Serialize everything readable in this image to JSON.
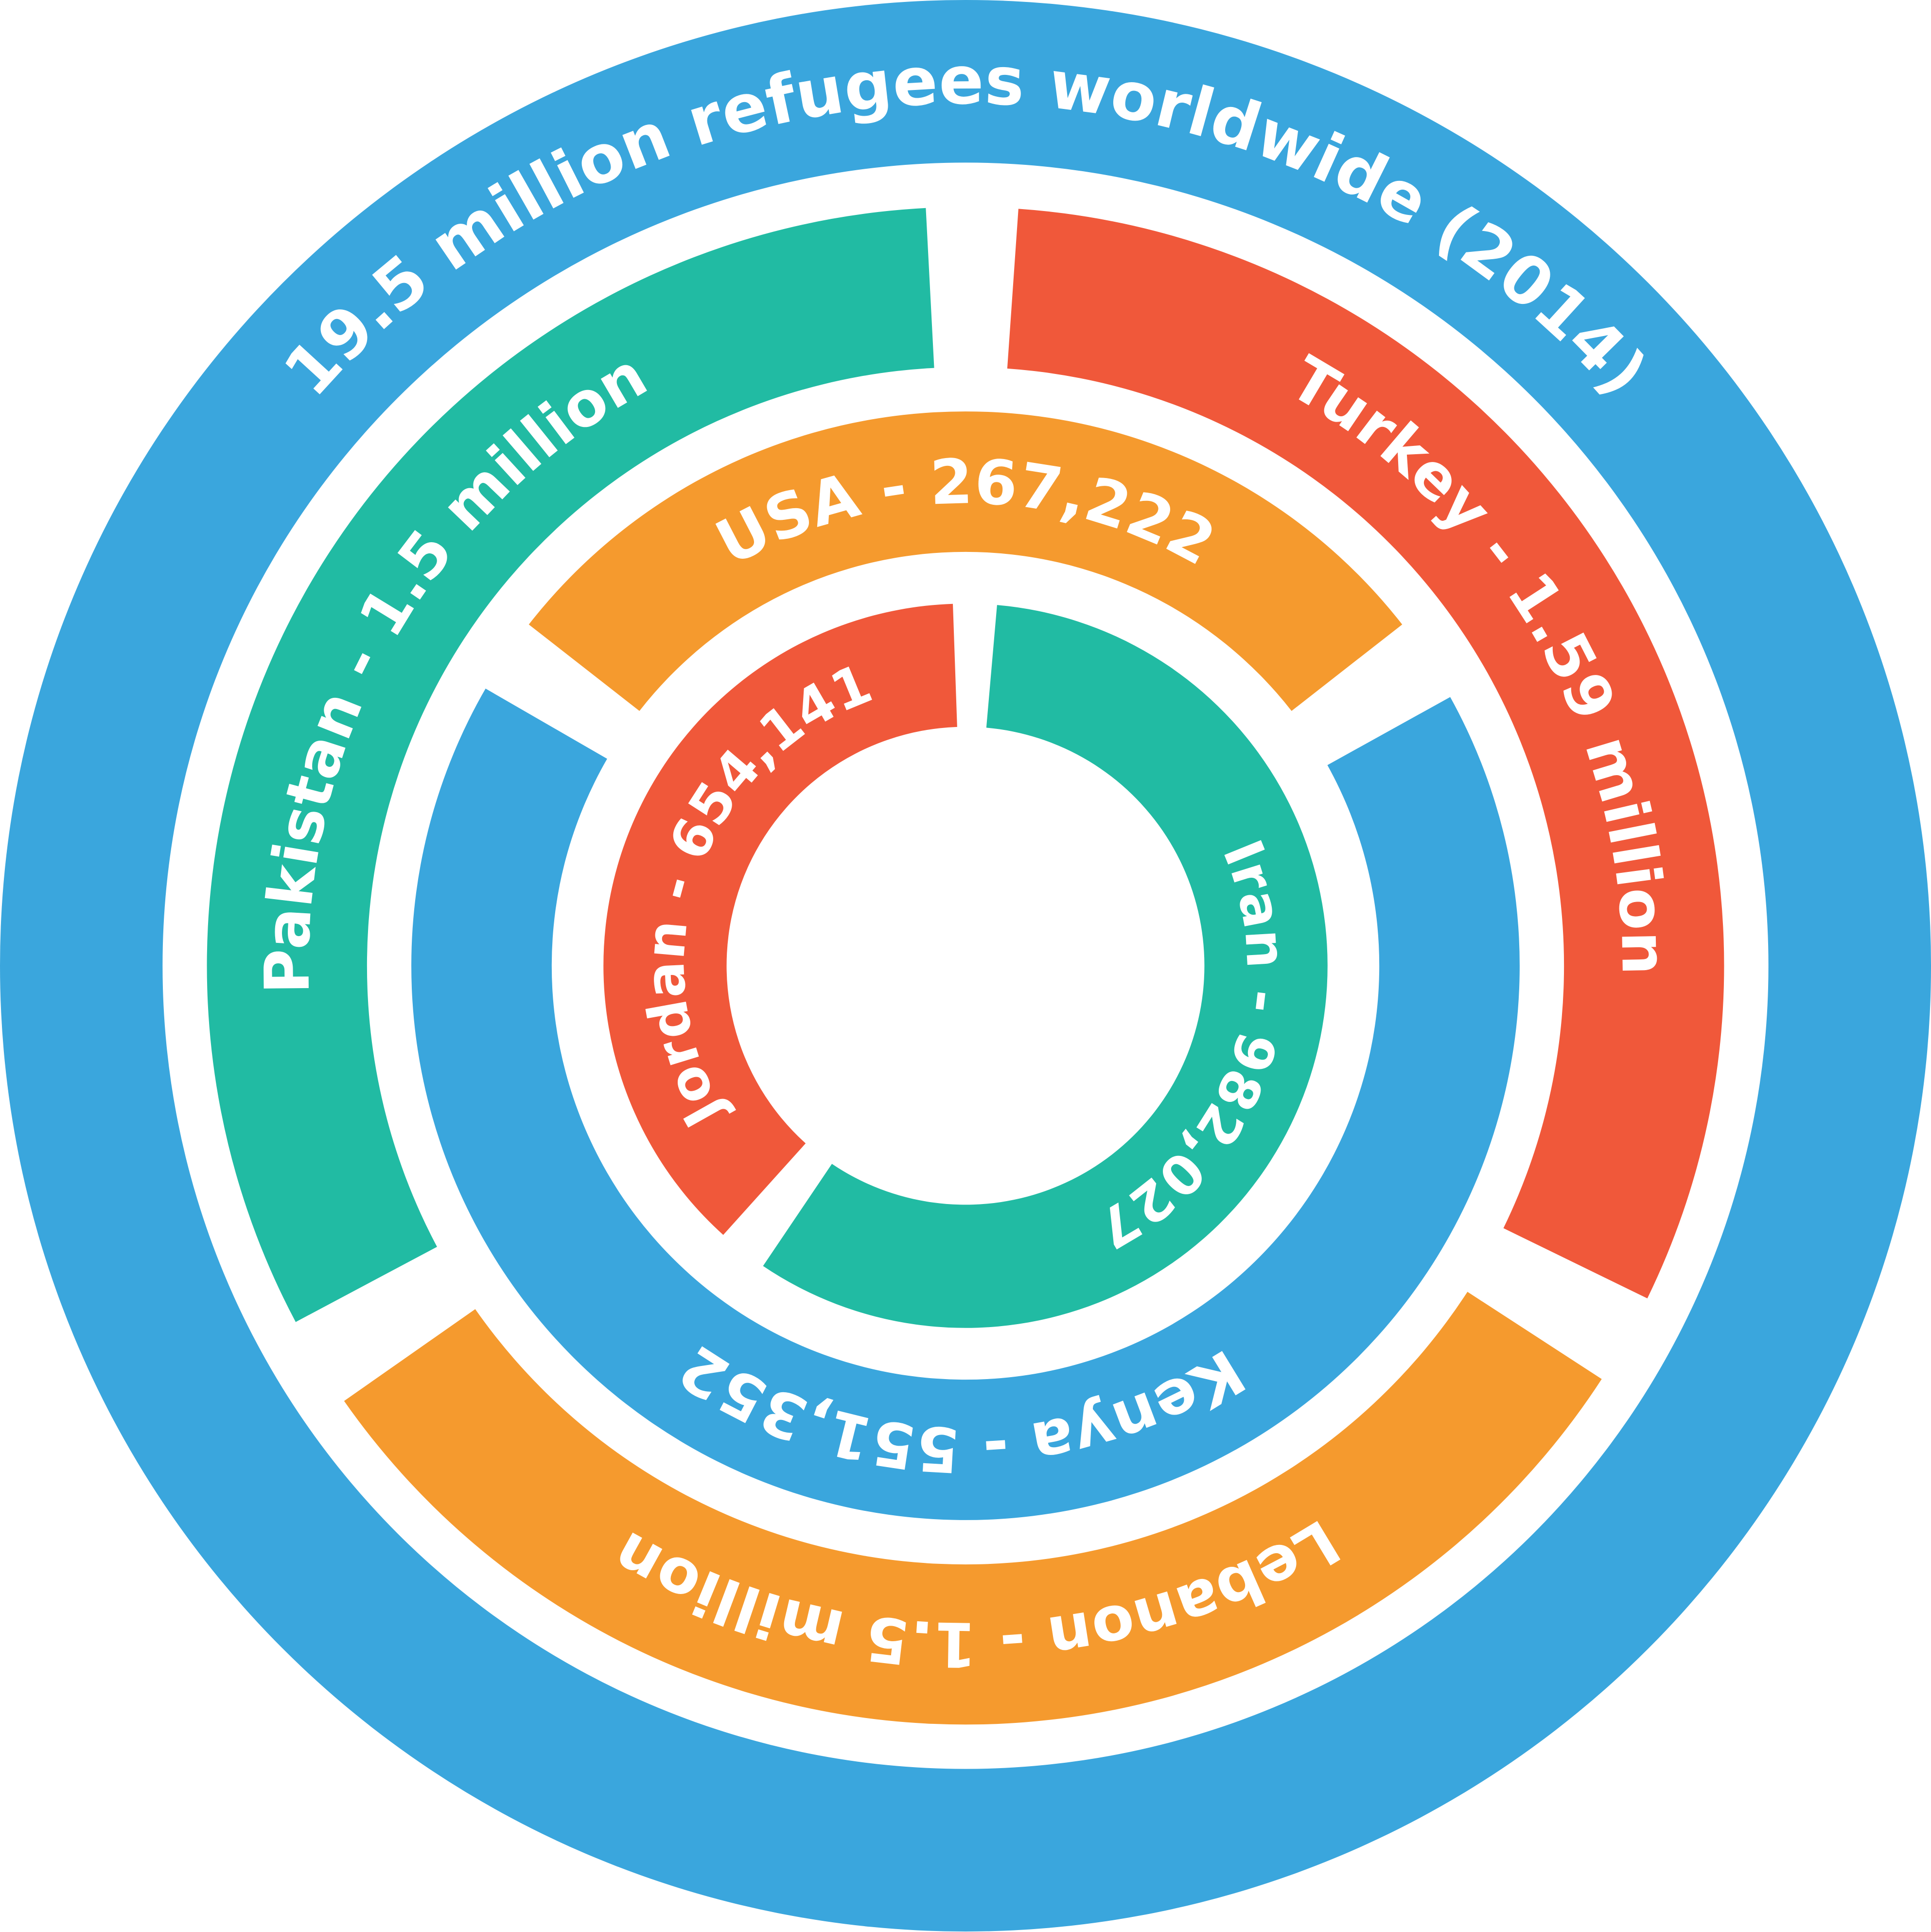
{
  "title": "19.5 million refugees worldwide (2014)",
  "segments": [
    {
      "label": "Pakistan - 1.5 million"
    },
    {
      "label": "Turkey - 1.59 million"
    },
    {
      "label": "Lebanon - 1.5 million"
    },
    {
      "label": "USA - 267,222"
    },
    {
      "label": "Kenya - 551,352"
    },
    {
      "label": "Jordan - 654,141"
    },
    {
      "label": "Iran - 982,027"
    }
  ]
}
